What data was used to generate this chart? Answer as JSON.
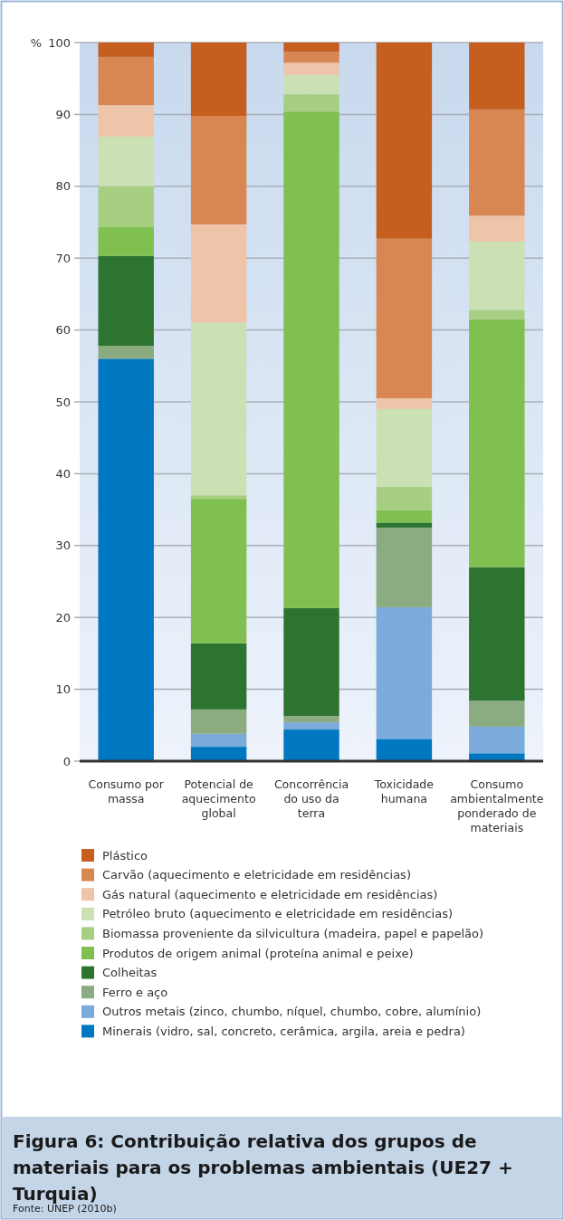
{
  "chart_data": {
    "type": "bar",
    "stacked": true,
    "title": "Figura 6: Contribuição relativa dos grupos de materiais para os problemas ambientais (UE27 + Turquia)",
    "ylabel": "%",
    "annotations": [
      "Fonte: UNEP (2010b)"
    ],
    "categories": [
      "Consumo por massa",
      "Potencial de aquecimento global",
      "Concorrência do uso da terra",
      "Toxicidade humana",
      "Consumo ambientalmente ponderado de materiais"
    ],
    "ylim": [
      0,
      100
    ],
    "yticks": [
      0,
      10,
      20,
      30,
      40,
      50,
      60,
      70,
      80,
      90,
      100
    ],
    "grid": "y",
    "legend": "bottom",
    "series": [
      {
        "name": "Minerais (vidro, sal, concreto, cerâmica, argila, areia e pedra)",
        "color": "#0078c1",
        "values": [
          56.0,
          2.0,
          4.4,
          3.1,
          1.1
        ]
      },
      {
        "name": "Outros metais (zinco, chumbo, níquel, chumbo, cobre, alumínio)",
        "color": "#7aabda",
        "values": [
          0,
          1.8,
          1.0,
          18.3,
          3.7
        ]
      },
      {
        "name": "Ferro e aço",
        "color": "#8bab80",
        "values": [
          1.8,
          3.4,
          0.9,
          11.1,
          3.6
        ]
      },
      {
        "name": "Colheitas",
        "color": "#2e7431",
        "values": [
          12.5,
          9.2,
          15.0,
          0.7,
          18.6
        ]
      },
      {
        "name": "Produtos de origem animal (proteína animal e peixe)",
        "color": "#7fc050",
        "values": [
          4.0,
          20.1,
          69.1,
          1.7,
          34.5
        ]
      },
      {
        "name": "Biomassa proveniente da silvicultura (madeira, papel e papelão)",
        "color": "#a6cf82",
        "values": [
          5.7,
          0.5,
          2.4,
          3.3,
          1.3
        ]
      },
      {
        "name": "Petróleo bruto (aquecimento e eletricidade em residências)",
        "color": "#cbe1b4",
        "values": [
          6.9,
          24.0,
          2.7,
          10.8,
          9.5
        ]
      },
      {
        "name": "Gás natural (aquecimento e eletricidade em residências)",
        "color": "#eec5a8",
        "values": [
          4.4,
          13.7,
          1.7,
          1.5,
          3.6
        ]
      },
      {
        "name": "Carvão (aquecimento e eletricidade em residências)",
        "color": "#d88753",
        "values": [
          6.7,
          15.1,
          1.5,
          22.2,
          14.8
        ]
      },
      {
        "name": "Plástico",
        "color": "#c55e1f",
        "values": [
          2.0,
          10.2,
          1.3,
          27.3,
          9.3
        ]
      }
    ]
  }
}
